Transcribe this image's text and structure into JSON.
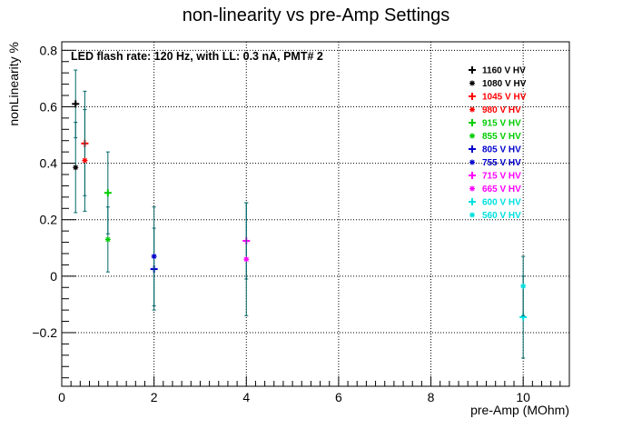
{
  "chart_data": {
    "type": "scatter",
    "title": "non-linearity vs pre-Amp Settings",
    "annotation": "LED flash rate: 120 Hz, with LL: 0.3 nA, PMT# 2",
    "xlabel": "pre-Amp (MOhm)",
    "ylabel": "nonLinearity %",
    "xlim": [
      0,
      11
    ],
    "ylim": [
      -0.39,
      0.83
    ],
    "x_ticks": [
      0,
      2,
      4,
      6,
      8,
      10
    ],
    "x_tick_labels": [
      "0",
      "2",
      "4",
      "6",
      "8",
      "10"
    ],
    "y_ticks": [
      -0.2,
      0,
      0.2,
      0.4,
      0.6,
      0.8
    ],
    "y_tick_labels": [
      "−0.2",
      "0",
      "0.2",
      "0.4",
      "0.6",
      "0.8"
    ],
    "grid": true,
    "legend_position": "top-right",
    "error_bar_color": "#006666",
    "series": [
      {
        "name": "1160 V HV",
        "color": "#000000",
        "marker": "plus",
        "x": 0.3,
        "y": 0.61,
        "err": 0.12
      },
      {
        "name": "1080 V HV",
        "color": "#000000",
        "marker": "star",
        "x": 0.3,
        "y": 0.385,
        "err": 0.16
      },
      {
        "name": "1045 V HV",
        "color": "#ff0000",
        "marker": "plus",
        "x": 0.5,
        "y": 0.47,
        "err": 0.185
      },
      {
        "name": "980 V HV",
        "color": "#ff0000",
        "marker": "star",
        "x": 0.5,
        "y": 0.41,
        "err": 0.18
      },
      {
        "name": "915 V HV",
        "color": "#00cc00",
        "marker": "plus",
        "x": 1,
        "y": 0.295,
        "err": 0.145
      },
      {
        "name": "855 V HV",
        "color": "#00cc00",
        "marker": "star",
        "x": 1,
        "y": 0.13,
        "err": 0.115
      },
      {
        "name": "805 V HV",
        "color": "#0000cc",
        "marker": "plus",
        "x": 2,
        "y": 0.025,
        "err": 0.145
      },
      {
        "name": "755 V HV",
        "color": "#0000cc",
        "marker": "star",
        "x": 2,
        "y": 0.07,
        "err": 0.175
      },
      {
        "name": "715 V HV",
        "color": "#ff00ff",
        "marker": "plus",
        "x": 4,
        "y": 0.125,
        "err": 0.135
      },
      {
        "name": "665 V HV",
        "color": "#ff00ff",
        "marker": "star",
        "x": 4,
        "y": 0.06,
        "err": 0.2
      },
      {
        "name": "600 V HV",
        "color": "#00e0e0",
        "marker": "plus",
        "x": 10,
        "y": -0.145,
        "err": 0.145
      },
      {
        "name": "560 V HV",
        "color": "#00e0e0",
        "marker": "star",
        "x": 10,
        "y": -0.035,
        "err": 0.105
      }
    ]
  }
}
